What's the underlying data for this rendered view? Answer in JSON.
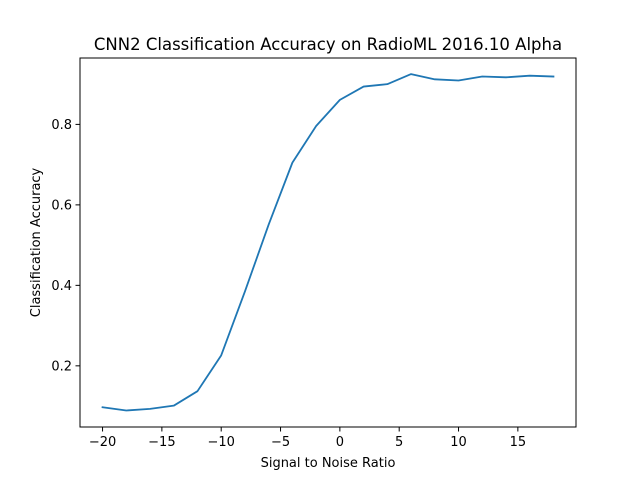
{
  "chart_data": {
    "type": "line",
    "title": "CNN2 Classification Accuracy on RadioML 2016.10 Alpha",
    "xlabel": "Signal to Noise Ratio",
    "ylabel": "Classification Accuracy",
    "xlim": [
      -21.9,
      19.9
    ],
    "ylim": [
      0.048,
      0.965
    ],
    "xticks": [
      -20,
      -15,
      -10,
      -5,
      0,
      5,
      10,
      15
    ],
    "xtick_labels": [
      "−20",
      "−15",
      "−10",
      "−5",
      "0",
      "5",
      "10",
      "15"
    ],
    "yticks": [
      0.2,
      0.4,
      0.6,
      0.8
    ],
    "ytick_labels": [
      "0.2",
      "0.4",
      "0.6",
      "0.8"
    ],
    "grid": false,
    "legend": "none",
    "series_color": "#1f77b4",
    "x": [
      -20,
      -18,
      -16,
      -14,
      -12,
      -10,
      -8,
      -6,
      -4,
      -2,
      0,
      2,
      4,
      6,
      8,
      10,
      12,
      14,
      16,
      18
    ],
    "series": [
      {
        "values": [
          0.097,
          0.089,
          0.093,
          0.101,
          0.137,
          0.226,
          0.385,
          0.551,
          0.705,
          0.796,
          0.861,
          0.894,
          0.9,
          0.925,
          0.912,
          0.909,
          0.919,
          0.917,
          0.921,
          0.919
        ]
      }
    ]
  }
}
